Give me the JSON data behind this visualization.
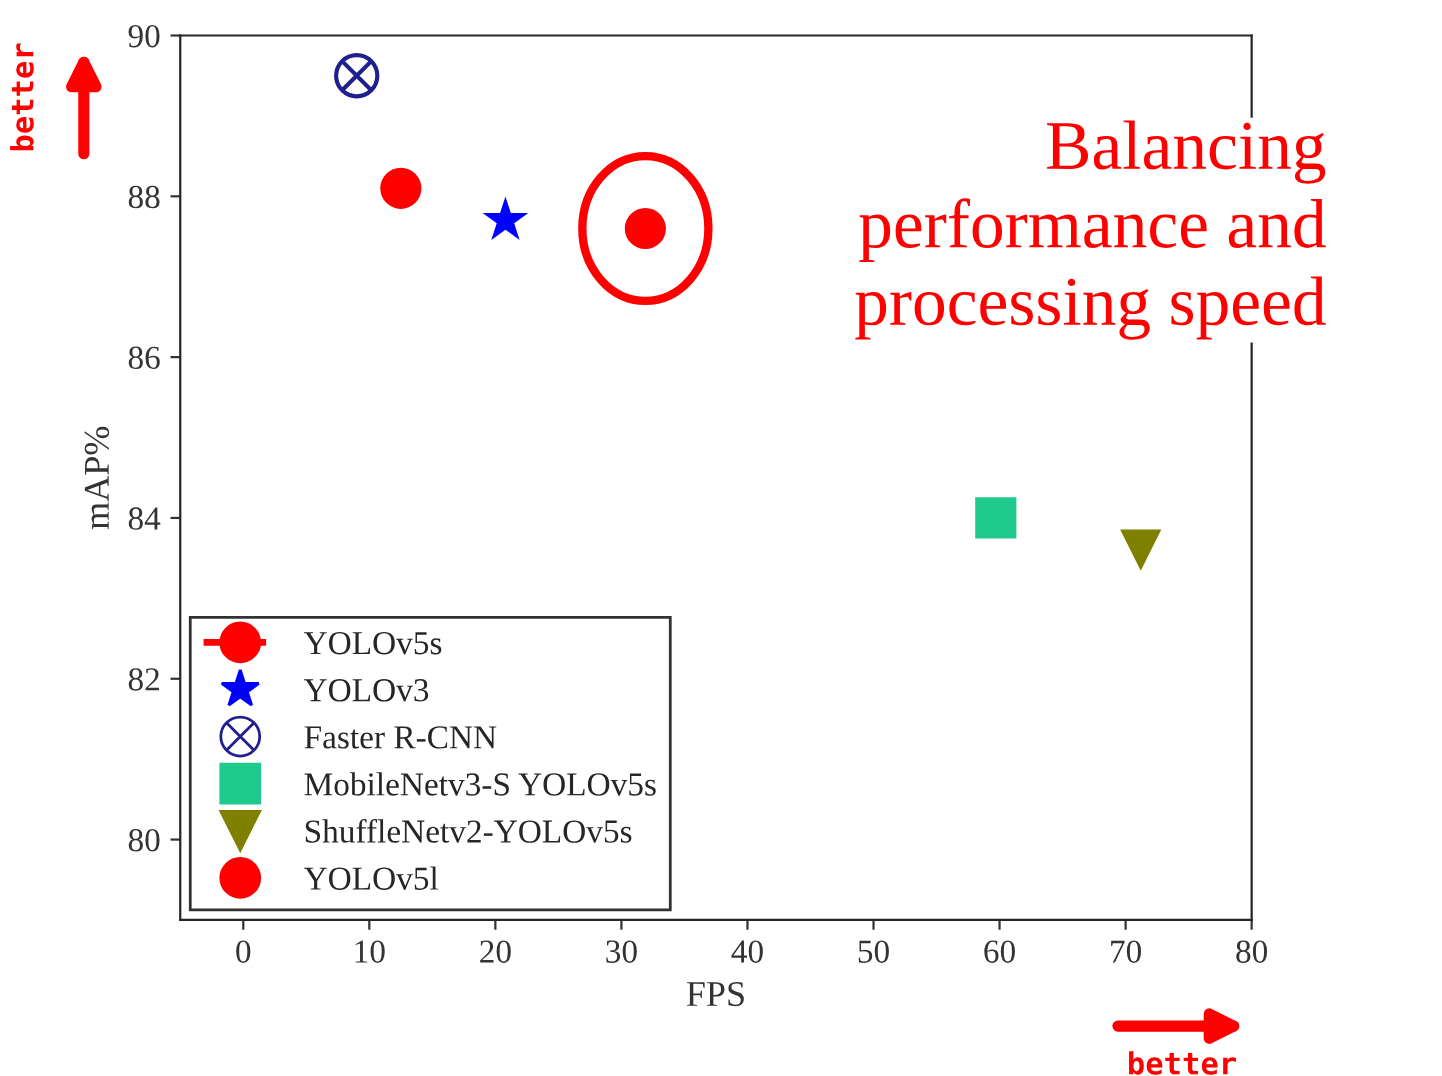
{
  "chart_data": {
    "type": "scatter",
    "xlabel": "FPS",
    "ylabel": "mAP%",
    "xlim": [
      -5,
      80
    ],
    "ylim": [
      79,
      90
    ],
    "xticks": [
      0,
      10,
      20,
      30,
      40,
      50,
      60,
      70,
      80
    ],
    "yticks": [
      80,
      82,
      84,
      86,
      88,
      90
    ],
    "grid": false,
    "legend": "bottom left",
    "series": [
      {
        "name": "YOLOv5s",
        "color": "#ff0000",
        "marker": "circle",
        "line_style": "dashed",
        "x": [
          31.9
        ],
        "values": [
          87.6
        ]
      },
      {
        "name": "YOLOv3",
        "color": "#0000ff",
        "marker": "star",
        "x": [
          20.8
        ],
        "values": [
          87.7
        ]
      },
      {
        "name": "Faster R-CNN",
        "color": "#1f1f8f",
        "marker": "cross",
        "x": [
          9.0
        ],
        "values": [
          89.5
        ]
      },
      {
        "name": "MobileNetv3-S YOLOv5s",
        "color": "#20c98c",
        "marker": "square",
        "x": [
          59.7
        ],
        "values": [
          84.0
        ]
      },
      {
        "name": "ShuffleNetv2-YOLOv5s",
        "color": "#808000",
        "marker": "triangle",
        "x": [
          71.2
        ],
        "values": [
          83.6
        ]
      },
      {
        "name": "YOLOv5l",
        "color": "#ff0000",
        "marker": "circle",
        "x": [
          12.5
        ],
        "values": [
          88.1
        ]
      }
    ],
    "annotations": [
      "Balancing\nperformance and\nprocessing speed",
      "better",
      "better"
    ]
  }
}
